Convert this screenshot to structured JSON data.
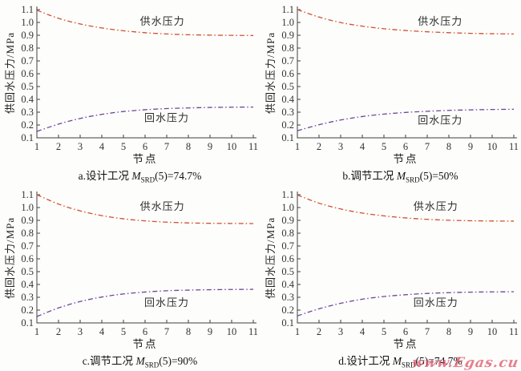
{
  "watermark": {
    "text": "www.Egas.cu",
    "color": "#de5064"
  },
  "colors": {
    "supply": "#d0502f",
    "return": "#6d4796",
    "axis": "#3f3f3f",
    "text": "#333333"
  },
  "chart_data": [
    {
      "type": "line",
      "id": "a",
      "xlabel": "节点",
      "ylabel": "供回水压力/MPa",
      "xlim": [
        1,
        11
      ],
      "ylim": [
        0.1,
        1.1
      ],
      "xticks": [
        1,
        2,
        3,
        4,
        5,
        6,
        7,
        8,
        9,
        10,
        11
      ],
      "yticks": [
        "0.1",
        "0.2",
        "0.3",
        "0.4",
        "0.5",
        "0.6",
        "0.7",
        "0.8",
        "0.9",
        "1.0",
        "1.1"
      ],
      "x": [
        1,
        2,
        3,
        4,
        5,
        6,
        7,
        8,
        9,
        10,
        11
      ],
      "series": [
        {
          "name": "供水压力",
          "color_key": "supply",
          "values": [
            1.095,
            1.032,
            0.988,
            0.957,
            0.935,
            0.92,
            0.91,
            0.904,
            0.901,
            0.899,
            0.898
          ],
          "label_x": 6.8,
          "label_y": 1.005
        },
        {
          "name": "回水压力",
          "color_key": "return",
          "values": [
            0.15,
            0.207,
            0.251,
            0.283,
            0.305,
            0.319,
            0.328,
            0.333,
            0.337,
            0.339,
            0.34
          ],
          "label_x": 7.0,
          "label_y": 0.252
        }
      ],
      "caption": {
        "prefix": "a.设计工况 ",
        "var": "M",
        "sub": "SRD",
        "rest": "(5)=74.7%"
      }
    },
    {
      "type": "line",
      "id": "b",
      "xlabel": "节点",
      "ylabel": "供回水压力/MPa",
      "xlim": [
        1,
        11
      ],
      "ylim": [
        0.1,
        1.1
      ],
      "xticks": [
        1,
        2,
        3,
        4,
        5,
        6,
        7,
        8,
        9,
        10,
        11
      ],
      "yticks": [
        "0.1",
        "0.2",
        "0.3",
        "0.4",
        "0.5",
        "0.6",
        "0.7",
        "0.8",
        "0.9",
        "1.0",
        "1.1"
      ],
      "x": [
        1,
        2,
        3,
        4,
        5,
        6,
        7,
        8,
        9,
        10,
        11
      ],
      "series": [
        {
          "name": "供水压力",
          "color_key": "supply",
          "values": [
            1.1,
            1.042,
            0.999,
            0.971,
            0.951,
            0.937,
            0.927,
            0.92,
            0.915,
            0.912,
            0.91
          ],
          "label_x": 7.6,
          "label_y": 1.005
        },
        {
          "name": "回水压力",
          "color_key": "return",
          "values": [
            0.155,
            0.202,
            0.239,
            0.266,
            0.285,
            0.298,
            0.307,
            0.314,
            0.318,
            0.321,
            0.323
          ],
          "label_x": 7.6,
          "label_y": 0.235
        }
      ],
      "caption": {
        "prefix": "b.调节工况 ",
        "var": "M",
        "sub": "SRD",
        "rest": "(5)=50%"
      }
    },
    {
      "type": "line",
      "id": "c",
      "xlabel": "节点",
      "ylabel": "供回水压力/MPa",
      "xlim": [
        1,
        11
      ],
      "ylim": [
        0.1,
        1.1
      ],
      "xticks": [
        1,
        2,
        3,
        4,
        5,
        6,
        7,
        8,
        9,
        10,
        11
      ],
      "yticks": [
        "0.1",
        "0.2",
        "0.3",
        "0.4",
        "0.5",
        "0.6",
        "0.7",
        "0.8",
        "0.9",
        "1.0",
        "1.1"
      ],
      "x": [
        1,
        2,
        3,
        4,
        5,
        6,
        7,
        8,
        9,
        10,
        11
      ],
      "series": [
        {
          "name": "供水压力",
          "color_key": "supply",
          "values": [
            1.1,
            1.027,
            0.974,
            0.937,
            0.912,
            0.896,
            0.886,
            0.88,
            0.877,
            0.876,
            0.875
          ],
          "label_x": 6.8,
          "label_y": 1.005
        },
        {
          "name": "回水压力",
          "color_key": "return",
          "values": [
            0.15,
            0.217,
            0.267,
            0.302,
            0.326,
            0.341,
            0.351,
            0.356,
            0.359,
            0.361,
            0.362
          ],
          "label_x": 7.0,
          "label_y": 0.257
        }
      ],
      "caption": {
        "prefix": "c.调节工况 ",
        "var": "M",
        "sub": "SRD",
        "rest": "(5)=90%"
      }
    },
    {
      "type": "line",
      "id": "d",
      "xlabel": "节点",
      "ylabel": "供回水压力/MPa",
      "xlim": [
        1,
        11
      ],
      "ylim": [
        0.1,
        1.1
      ],
      "xticks": [
        1,
        2,
        3,
        4,
        5,
        6,
        7,
        8,
        9,
        10,
        11
      ],
      "yticks": [
        "0.1",
        "0.2",
        "0.3",
        "0.4",
        "0.5",
        "0.6",
        "0.7",
        "0.8",
        "0.9",
        "1.0",
        "1.1"
      ],
      "x": [
        1,
        2,
        3,
        4,
        5,
        6,
        7,
        8,
        9,
        10,
        11
      ],
      "series": [
        {
          "name": "供水压力",
          "color_key": "supply",
          "values": [
            1.098,
            1.034,
            0.989,
            0.957,
            0.935,
            0.919,
            0.908,
            0.901,
            0.897,
            0.895,
            0.894
          ],
          "label_x": 7.4,
          "label_y": 1.005
        },
        {
          "name": "回水压力",
          "color_key": "return",
          "values": [
            0.155,
            0.21,
            0.253,
            0.285,
            0.306,
            0.32,
            0.33,
            0.336,
            0.34,
            0.342,
            0.343
          ],
          "label_x": 7.4,
          "label_y": 0.255
        }
      ],
      "caption": {
        "prefix": "d.设计工况 ",
        "var": "M",
        "sub": "SRD",
        "rest": "(5)=74.7%"
      }
    }
  ]
}
